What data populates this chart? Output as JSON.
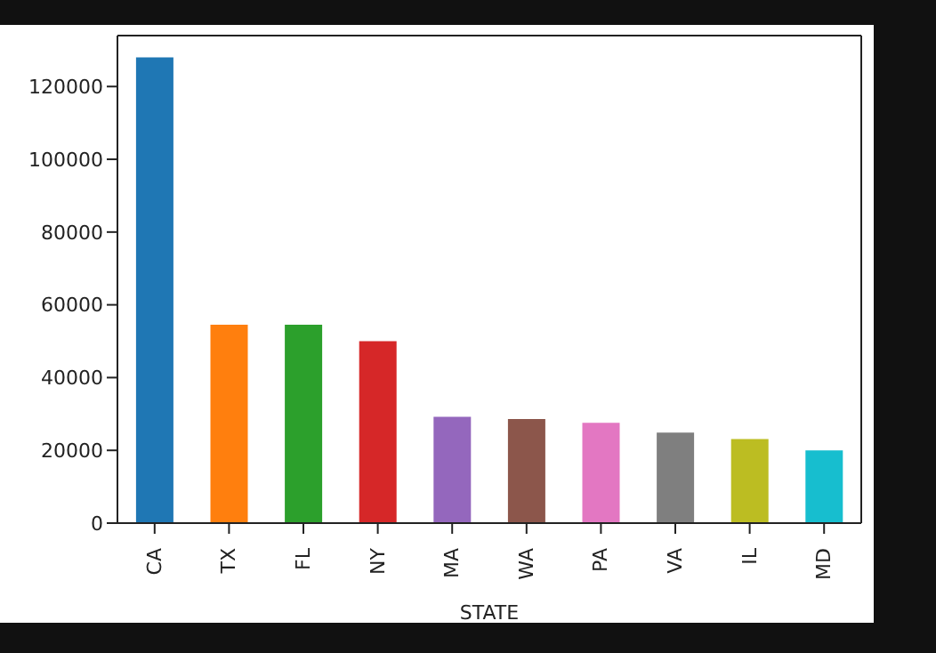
{
  "chart_data": {
    "type": "bar",
    "xlabel": "STATE",
    "categories": [
      "CA",
      "TX",
      "FL",
      "NY",
      "MA",
      "WA",
      "PA",
      "VA",
      "IL",
      "MD"
    ],
    "values": [
      128000,
      54500,
      54500,
      50000,
      29200,
      28600,
      27600,
      24900,
      23100,
      20000
    ],
    "colors": [
      "#1f77b4",
      "#ff7f0e",
      "#2ca02c",
      "#d62728",
      "#9467bd",
      "#8c564b",
      "#e377c2",
      "#7f7f7f",
      "#bcbd22",
      "#17becf"
    ],
    "ylim": [
      0,
      134000
    ],
    "yticks": [
      0,
      20000,
      40000,
      60000,
      80000,
      100000,
      120000
    ],
    "grid": false,
    "legend": false
  }
}
